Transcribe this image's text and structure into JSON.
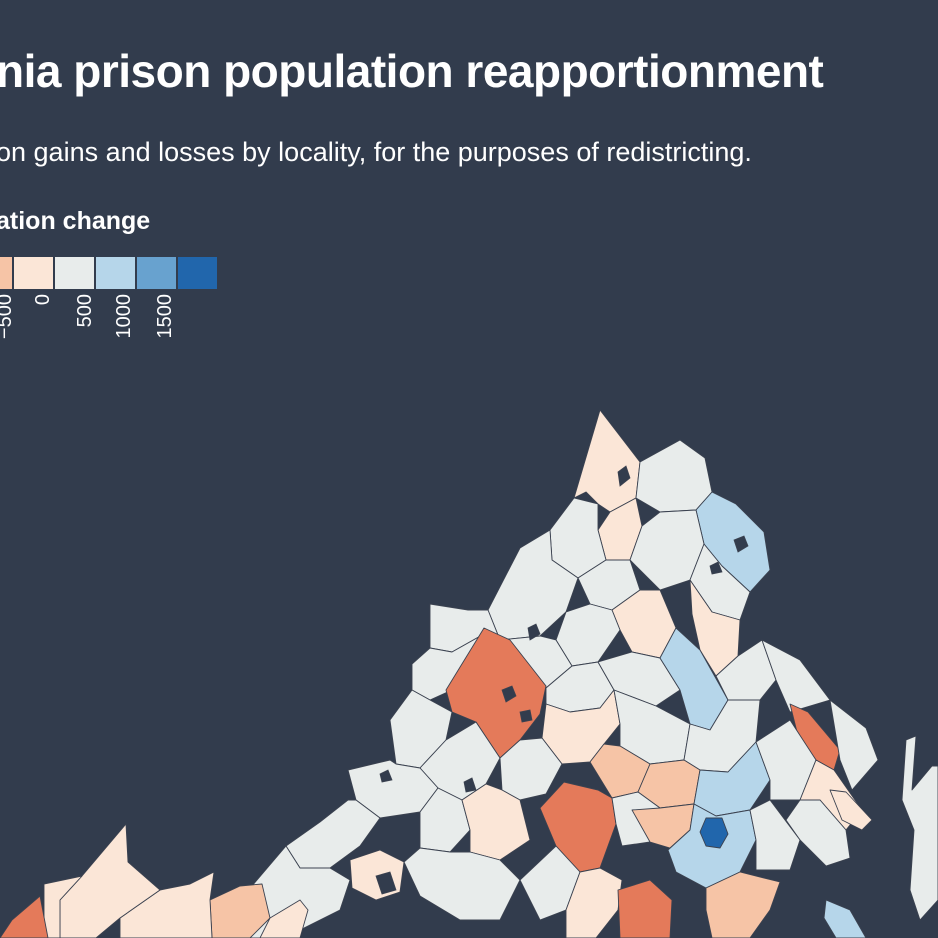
{
  "title": "nia prison population reapportionment",
  "subtitle": "on gains and losses by locality, for the purposes of redistricting.",
  "legend": {
    "title": "ation change",
    "swatches": [
      "#f6c4a6",
      "#fbe6d7",
      "#e8eceb",
      "#b6d6ea",
      "#68a2cf",
      "#2166ac"
    ],
    "ticks": [
      "−500",
      "0",
      "500",
      "1000",
      "1500"
    ]
  },
  "colors": {
    "background": "#323c4d",
    "strong_loss": "#e47a5a",
    "loss": "#f6c4a6",
    "slight_loss": "#fbe6d7",
    "neutral": "#e8eceb",
    "gain": "#b6d6ea",
    "strong_gain": "#2166ac"
  }
}
